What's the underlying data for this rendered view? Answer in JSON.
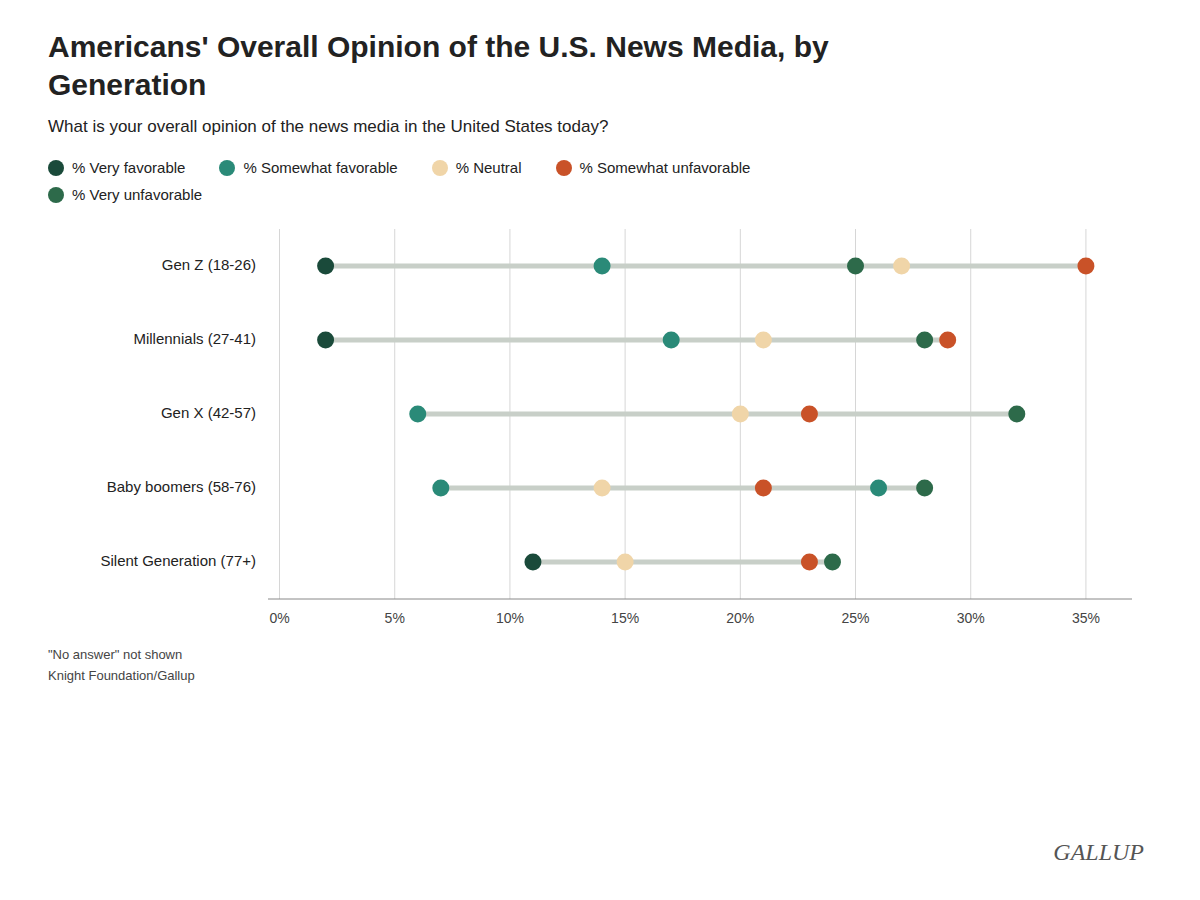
{
  "chart_data": {
    "type": "dot",
    "title": "Americans' Overall Opinion of the U.S. News Media, by Generation",
    "subtitle": "What is your overall opinion of the news media in the United States today?",
    "categories": [
      "Gen Z (18-26)",
      "Millennials (27-41)",
      "Gen X (42-57)",
      "Baby boomers (58-76)",
      "Silent Generation (77+)"
    ],
    "values": [
      [
        2,
        14,
        25,
        27,
        35
      ],
      [
        2,
        17,
        21,
        28,
        29
      ],
      [
        6,
        20,
        23,
        32
      ],
      [
        7,
        14,
        21,
        26,
        28
      ],
      [
        11,
        15,
        23,
        24
      ]
    ],
    "colors": [
      [
        "#1a4a3a",
        "#2a8a78",
        "#2d6a4a",
        "#f0d5a8",
        "#c95228"
      ],
      [
        "#1a4a3a",
        "#2a8a78",
        "#f0d5a8",
        "#2d6a4a",
        "#c95228"
      ],
      [
        "#2a8a78",
        "#f0d5a8",
        "#c95228",
        "#2d6a4a"
      ],
      [
        "#2a8a78",
        "#f0d5a8",
        "#c95228",
        "#2a8a78",
        "#2d6a4a"
      ],
      [
        "#1a4a3a",
        "#f0d5a8",
        "#c95228",
        "#2d6a4a"
      ]
    ],
    "series": [
      {
        "name": "% Very favorable",
        "color": "#1a4a3a"
      },
      {
        "name": "% Somewhat favorable",
        "color": "#2a8a78"
      },
      {
        "name": "% Neutral",
        "color": "#f0d5a8"
      },
      {
        "name": "% Somewhat unfavorable",
        "color": "#c95228"
      },
      {
        "name": "% Very unfavorable",
        "color": "#2d6a4a"
      }
    ],
    "xlim": [
      -0.5,
      37
    ],
    "xticks": [
      {
        "value": 0,
        "label": "0%"
      },
      {
        "value": 5,
        "label": "5%"
      },
      {
        "value": 10,
        "label": "10%"
      },
      {
        "value": 15,
        "label": "15%"
      },
      {
        "value": 20,
        "label": "20%"
      },
      {
        "value": 25,
        "label": "25%"
      },
      {
        "value": 30,
        "label": "30%"
      },
      {
        "value": 35,
        "label": "35%"
      }
    ],
    "grid": true,
    "annotations": [
      "\"No answer\" not shown",
      "Knight Foundation/Gallup",
      "GALLUP"
    ]
  }
}
